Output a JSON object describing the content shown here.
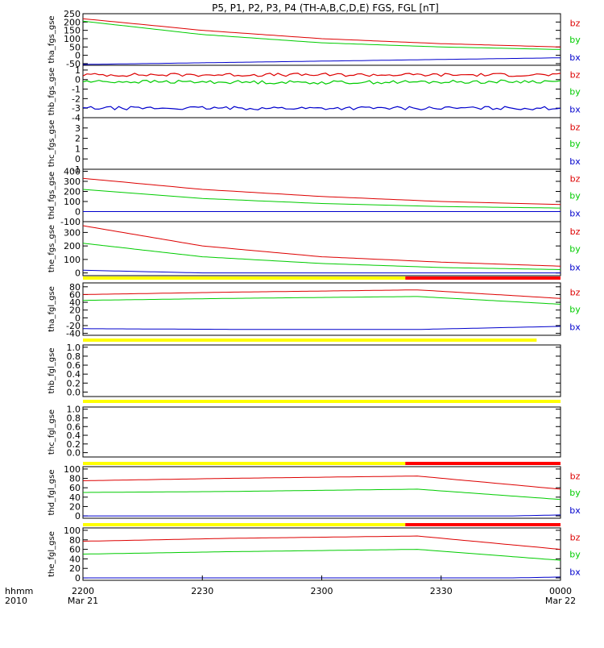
{
  "title": "P5, P1, P2, P3, P4 (TH-A,B,C,D,E) FGS, FGL [nT]",
  "time_axis": {
    "stamp_label": [
      "hhmm",
      "2010"
    ],
    "ticks": [
      {
        "label": "2200",
        "sub": "Mar 21"
      },
      {
        "label": "2230",
        "sub": ""
      },
      {
        "label": "2300",
        "sub": ""
      },
      {
        "label": "2330",
        "sub": ""
      },
      {
        "label": "0000",
        "sub": "Mar 22"
      }
    ]
  },
  "colors": {
    "bz": "#dd0000",
    "by": "#00cc00",
    "bx": "#0000cc",
    "bar_yellow": "#ffff00",
    "bar_red": "#ff0000"
  },
  "chart_data": [
    {
      "type": "line",
      "ylabel": "tha_fgs_gse",
      "yticks": [
        "250",
        "200",
        "150",
        "100",
        "50",
        "0",
        "-50"
      ],
      "ylim": [
        -60,
        250
      ],
      "legend": [
        "bz",
        "by",
        "bx"
      ],
      "legend_position": "right",
      "series": [
        {
          "name": "bz",
          "x": [
            0,
            0.25,
            0.5,
            0.75,
            1.0
          ],
          "values": [
            220,
            150,
            100,
            70,
            50
          ]
        },
        {
          "name": "by",
          "x": [
            0,
            0.25,
            0.5,
            0.75,
            1.0
          ],
          "values": [
            205,
            125,
            75,
            50,
            35
          ]
        },
        {
          "name": "bx",
          "x": [
            0,
            0.25,
            0.5,
            0.75,
            1.0
          ],
          "values": [
            -55,
            -45,
            -35,
            -25,
            -15
          ]
        }
      ]
    },
    {
      "type": "line",
      "ylabel": "thb_fgs_gse",
      "yticks": [
        "1",
        "0",
        "-1",
        "-2",
        "-3",
        "-4"
      ],
      "ylim": [
        -4,
        1.5
      ],
      "legend": [
        "bz",
        "by",
        "bx"
      ],
      "legend_position": "right",
      "series": [
        {
          "name": "bz",
          "x": [
            0,
            0.5,
            1.0
          ],
          "values": [
            0.5,
            0.5,
            0.5
          ]
        },
        {
          "name": "by",
          "x": [
            0,
            0.5,
            1.0
          ],
          "values": [
            -0.2,
            -0.3,
            -0.2
          ]
        },
        {
          "name": "bx",
          "x": [
            0,
            0.5,
            1.0
          ],
          "values": [
            -3.0,
            -3.0,
            -3.0
          ]
        }
      ]
    },
    {
      "type": "line",
      "ylabel": "thc_fgs_gse",
      "yticks": [
        "3",
        "2",
        "1",
        "0",
        "-1"
      ],
      "ylim": [
        -1,
        4
      ],
      "legend": [
        "bz",
        "by",
        "bx"
      ],
      "legend_position": "right",
      "series": []
    },
    {
      "type": "line",
      "ylabel": "thd_fgs_gse",
      "yticks": [
        "400",
        "300",
        "200",
        "100",
        "0",
        "-100"
      ],
      "ylim": [
        -100,
        420
      ],
      "legend": [
        "bz",
        "by",
        "bx"
      ],
      "legend_position": "right",
      "series": [
        {
          "name": "bz",
          "x": [
            0,
            0.25,
            0.5,
            0.75,
            1.0
          ],
          "values": [
            330,
            220,
            150,
            100,
            70
          ]
        },
        {
          "name": "by",
          "x": [
            0,
            0.25,
            0.5,
            0.75,
            1.0
          ],
          "values": [
            220,
            130,
            80,
            50,
            35
          ]
        },
        {
          "name": "bx",
          "x": [
            0,
            0.25,
            0.5,
            0.75,
            1.0
          ],
          "values": [
            0,
            0,
            0,
            0,
            0
          ]
        }
      ]
    },
    {
      "type": "line",
      "ylabel": "the_fgs_gse",
      "yticks": [
        "300",
        "200",
        "100",
        "0"
      ],
      "ylim": [
        -20,
        380
      ],
      "legend": [
        "bz",
        "by",
        "bx"
      ],
      "legend_position": "right",
      "series": [
        {
          "name": "bz",
          "x": [
            0,
            0.25,
            0.5,
            0.75,
            1.0
          ],
          "values": [
            350,
            200,
            120,
            80,
            50
          ]
        },
        {
          "name": "by",
          "x": [
            0,
            0.25,
            0.5,
            0.75,
            1.0
          ],
          "values": [
            220,
            120,
            70,
            40,
            25
          ]
        },
        {
          "name": "bx",
          "x": [
            0,
            0.25,
            0.5,
            0.75,
            1.0
          ],
          "values": [
            20,
            0,
            0,
            0,
            0
          ]
        }
      ],
      "status_bar": [
        {
          "from": 0,
          "to": 0.675,
          "color": "yellow"
        },
        {
          "from": 0.675,
          "to": 1.0,
          "color": "red"
        }
      ]
    },
    {
      "type": "line",
      "ylabel": "tha_fgl_gse",
      "yticks": [
        "80",
        "60",
        "40",
        "20",
        "0",
        "-20",
        "-40"
      ],
      "ylim": [
        -45,
        90
      ],
      "legend": [
        "bz",
        "by",
        "bx"
      ],
      "legend_position": "right",
      "series": [
        {
          "name": "bz",
          "x": [
            0,
            0.3,
            0.7,
            1.0
          ],
          "values": [
            60,
            66,
            72,
            50
          ]
        },
        {
          "name": "by",
          "x": [
            0,
            0.3,
            0.7,
            1.0
          ],
          "values": [
            45,
            50,
            55,
            35
          ]
        },
        {
          "name": "bx",
          "x": [
            0,
            0.35,
            0.7,
            1.0
          ],
          "values": [
            -28,
            -30,
            -30,
            -22
          ]
        }
      ],
      "status_bar": [
        {
          "from": 0,
          "to": 0.95,
          "color": "yellow"
        }
      ]
    },
    {
      "type": "line",
      "ylabel": "thb_fgl_gse",
      "yticks": [
        "1.0",
        "0.8",
        "0.6",
        "0.4",
        "0.2",
        "0.0"
      ],
      "ylim": [
        -0.1,
        1.05
      ],
      "series": [],
      "status_bar": [
        {
          "from": 0,
          "to": 1.0,
          "color": "yellow"
        }
      ]
    },
    {
      "type": "line",
      "ylabel": "thc_fgl_gse",
      "yticks": [
        "1.0",
        "0.8",
        "0.6",
        "0.4",
        "0.2",
        "0.0"
      ],
      "ylim": [
        -0.1,
        1.05
      ],
      "series": [],
      "status_bar": [
        {
          "from": 0,
          "to": 0.675,
          "color": "yellow"
        },
        {
          "from": 0.675,
          "to": 1.0,
          "color": "red"
        }
      ]
    },
    {
      "type": "line",
      "ylabel": "thd_fgl_gse",
      "yticks": [
        "100",
        "80",
        "60",
        "40",
        "20",
        "0"
      ],
      "ylim": [
        -5,
        105
      ],
      "legend": [
        "bz",
        "by",
        "bx"
      ],
      "legend_position": "right",
      "series": [
        {
          "name": "bz",
          "x": [
            0,
            0.3,
            0.7,
            1.0
          ],
          "values": [
            75,
            80,
            85,
            57
          ]
        },
        {
          "name": "by",
          "x": [
            0,
            0.3,
            0.7,
            1.0
          ],
          "values": [
            50,
            52,
            57,
            35
          ]
        },
        {
          "name": "bx",
          "x": [
            0,
            0.9,
            1.0
          ],
          "values": [
            0,
            0,
            2
          ]
        }
      ],
      "status_bar": [
        {
          "from": 0,
          "to": 0.675,
          "color": "yellow"
        },
        {
          "from": 0.675,
          "to": 1.0,
          "color": "red"
        }
      ]
    },
    {
      "type": "line",
      "ylabel": "the_fgl_gse",
      "yticks": [
        "100",
        "80",
        "60",
        "40",
        "20",
        "0"
      ],
      "ylim": [
        -5,
        105
      ],
      "legend": [
        "bz",
        "by",
        "bx"
      ],
      "legend_position": "right",
      "series": [
        {
          "name": "bz",
          "x": [
            0,
            0.3,
            0.7,
            1.0
          ],
          "values": [
            77,
            83,
            88,
            60
          ]
        },
        {
          "name": "by",
          "x": [
            0,
            0.3,
            0.7,
            1.0
          ],
          "values": [
            50,
            55,
            60,
            37
          ]
        },
        {
          "name": "bx",
          "x": [
            0,
            0.9,
            1.0
          ],
          "values": [
            0,
            0,
            2
          ]
        }
      ]
    }
  ]
}
